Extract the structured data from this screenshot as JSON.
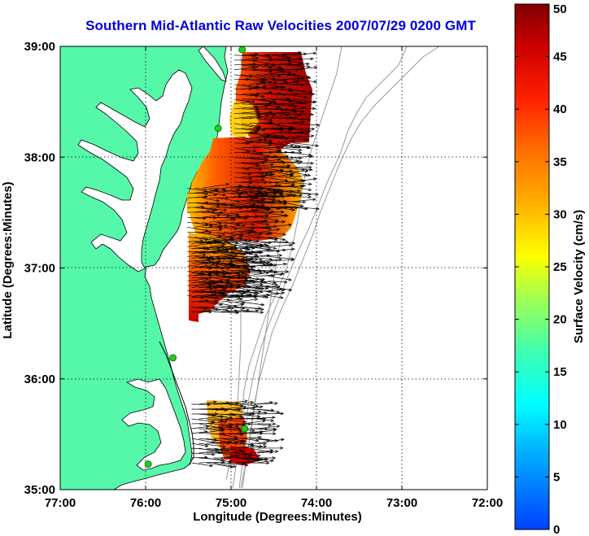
{
  "title": "Southern Mid-Atlantic Raw Velocities 2007/07/29 0200 GMT",
  "axes": {
    "xlabel": "Longitude (Degrees:Minutes)",
    "ylabel": "Latitude (Degrees:Minutes)",
    "xticks": [
      "77:00",
      "76:00",
      "75:00",
      "74:00",
      "73:00",
      "72:00"
    ],
    "yticks": [
      "39:00",
      "38:00",
      "37:00",
      "36:00",
      "35:00"
    ],
    "xlim": [
      -77,
      -72
    ],
    "ylim": [
      35,
      39
    ],
    "grid": "dotted"
  },
  "colorbar": {
    "label": "Surface Velocity (cm/s)",
    "ticks": [
      "0",
      "5",
      "10",
      "15",
      "20",
      "25",
      "30",
      "35",
      "40",
      "45",
      "50"
    ],
    "range": [
      0,
      50
    ]
  },
  "colors": {
    "land": "#55f7a8",
    "water": "#ffffff",
    "coastline": "#000000",
    "bathymetry": "#999999",
    "stations": "#22cc22",
    "title": "#0000dd"
  },
  "stations": [
    {
      "lon": -74.87,
      "lat": 38.97
    },
    {
      "lon": -75.15,
      "lat": 38.26
    },
    {
      "lon": -75.68,
      "lat": 36.19
    },
    {
      "lon": -75.97,
      "lat": 35.23
    },
    {
      "lon": -74.84,
      "lat": 35.55
    }
  ],
  "velocity_regions": [
    {
      "name": "delaware-shelf",
      "lon": [
        -75.0,
        -74.15
      ],
      "lat": [
        37.5,
        38.95
      ],
      "mean_speed": 42
    },
    {
      "name": "virginia-shelf",
      "lon": [
        -75.55,
        -74.5
      ],
      "lat": [
        36.7,
        37.75
      ],
      "mean_speed": 40
    },
    {
      "name": "chesapeake-mouth",
      "lon": [
        -75.5,
        -74.75
      ],
      "lat": [
        36.55,
        37.25
      ],
      "mean_speed": 43
    },
    {
      "name": "hatteras",
      "lon": [
        -75.5,
        -74.6
      ],
      "lat": [
        35.2,
        35.8
      ],
      "mean_speed": 38
    }
  ]
}
